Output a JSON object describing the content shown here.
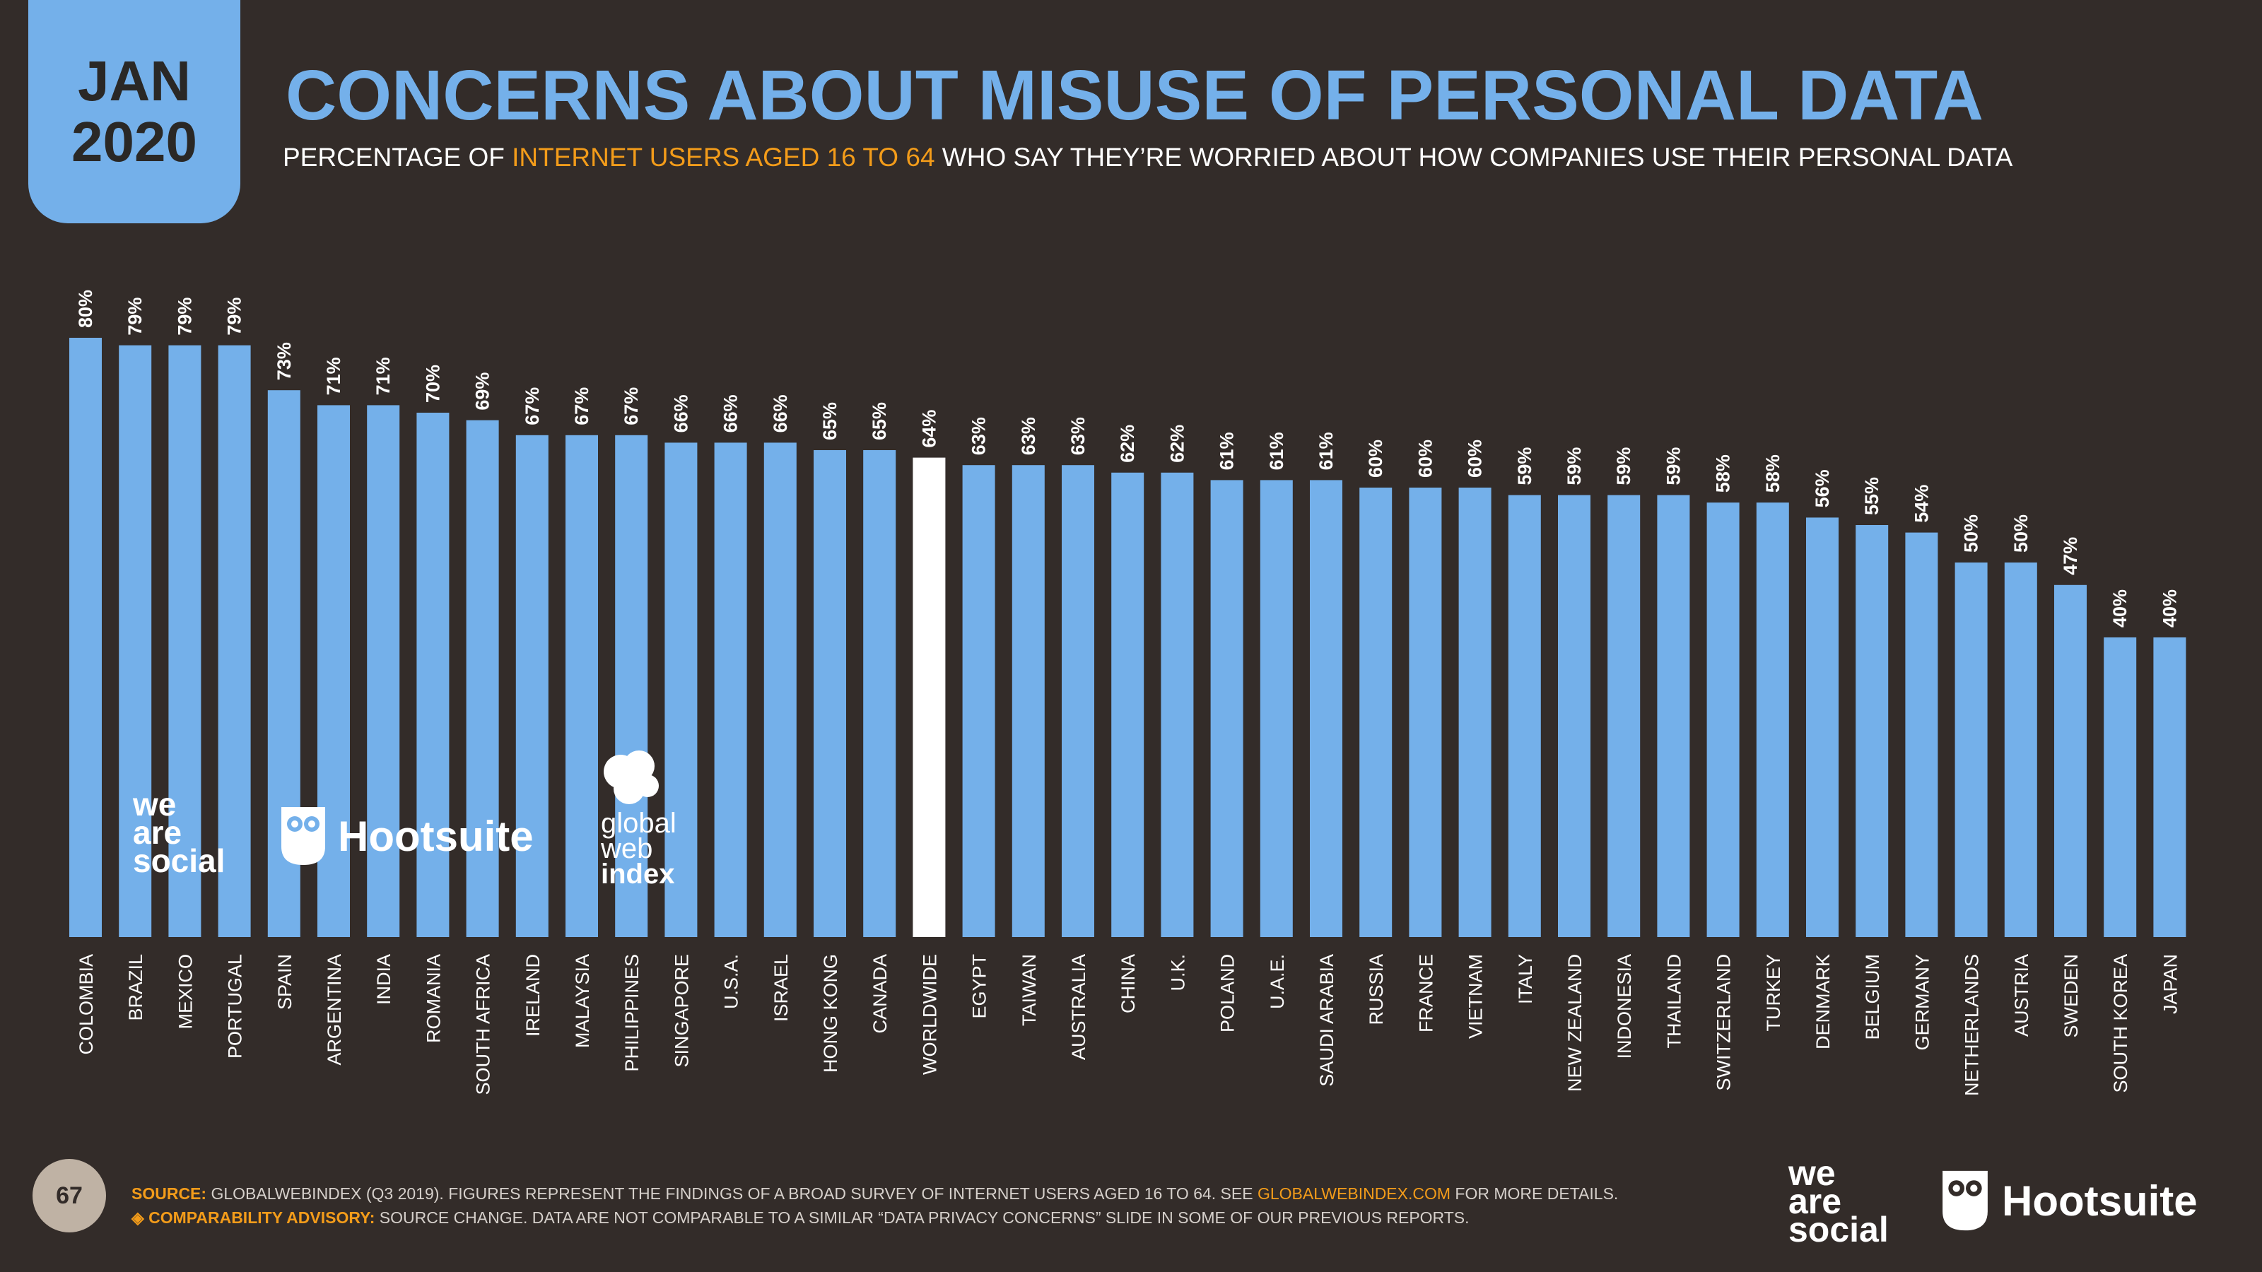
{
  "badge": {
    "month": "JAN",
    "year": "2020"
  },
  "header": {
    "title": "CONCERNS ABOUT MISUSE OF PERSONAL DATA",
    "subtitle_pre": "PERCENTAGE OF ",
    "subtitle_highlight": "INTERNET USERS AGED 16 TO 64",
    "subtitle_post": " WHO SAY THEY’RE WORRIED ABOUT HOW COMPANIES USE THEIR PERSONAL DATA"
  },
  "chart_data": {
    "type": "bar",
    "categories": [
      "COLOMBIA",
      "BRAZIL",
      "MEXICO",
      "PORTUGAL",
      "SPAIN",
      "ARGENTINA",
      "INDIA",
      "ROMANIA",
      "SOUTH AFRICA",
      "IRELAND",
      "MALAYSIA",
      "PHILIPPINES",
      "SINGAPORE",
      "U.S.A.",
      "ISRAEL",
      "HONG KONG",
      "CANADA",
      "WORLDWIDE",
      "EGYPT",
      "TAIWAN",
      "AUSTRALIA",
      "CHINA",
      "U.K.",
      "POLAND",
      "U.A.E.",
      "SAUDI ARABIA",
      "RUSSIA",
      "FRANCE",
      "VIETNAM",
      "ITALY",
      "NEW ZEALAND",
      "INDONESIA",
      "THAILAND",
      "SWITZERLAND",
      "TURKEY",
      "DENMARK",
      "BELGIUM",
      "GERMANY",
      "NETHERLANDS",
      "AUSTRIA",
      "SWEDEN",
      "SOUTH KOREA",
      "JAPAN"
    ],
    "values": [
      80,
      79,
      79,
      79,
      73,
      71,
      71,
      70,
      69,
      67,
      67,
      67,
      66,
      66,
      66,
      65,
      65,
      64,
      63,
      63,
      63,
      62,
      62,
      61,
      61,
      61,
      60,
      60,
      60,
      59,
      59,
      59,
      59,
      58,
      58,
      56,
      55,
      54,
      50,
      50,
      47,
      40,
      40
    ],
    "value_labels": [
      "80%",
      "79%",
      "79%",
      "79%",
      "73%",
      "71%",
      "71%",
      "70%",
      "69%",
      "67%",
      "67%",
      "67%",
      "66%",
      "66%",
      "66%",
      "65%",
      "65%",
      "64%",
      "63%",
      "63%",
      "63%",
      "62%",
      "62%",
      "61%",
      "61%",
      "61%",
      "60%",
      "60%",
      "60%",
      "59%",
      "59%",
      "59%",
      "59%",
      "58%",
      "58%",
      "56%",
      "55%",
      "54%",
      "50%",
      "50%",
      "47%",
      "40%",
      "40%"
    ],
    "highlight_category": "WORLDWIDE",
    "colors": {
      "bar": "#74b0ea",
      "highlight": "#ffffff",
      "value_label": "#ffffff",
      "category_label": "#ffffff"
    },
    "ylim": [
      0,
      80
    ],
    "grid": false
  },
  "inline_logos": {
    "we_are_social": [
      "we",
      "are",
      "social"
    ],
    "hootsuite": "Hootsuite",
    "gwi": [
      "global",
      "web",
      "index"
    ]
  },
  "footer": {
    "page_number": "67",
    "source_key": "SOURCE:",
    "source_text": " GLOBALWEBINDEX (Q3 2019). FIGURES REPRESENT THE FINDINGS OF A BROAD SURVEY OF INTERNET USERS AGED 16 TO 64. SEE ",
    "source_link": "GLOBALWEBINDEX.COM",
    "source_tail": " FOR MORE DETAILS.",
    "advisory_key": "◈ COMPARABILITY ADVISORY:",
    "advisory_text": " SOURCE CHANGE. DATA ARE NOT COMPARABLE TO A SIMILAR “DATA PRIVACY CONCERNS” SLIDE IN SOME OF OUR PREVIOUS REPORTS.",
    "logo_we_are_social": [
      "we",
      "are",
      "social"
    ],
    "logo_hootsuite": "Hootsuite"
  }
}
